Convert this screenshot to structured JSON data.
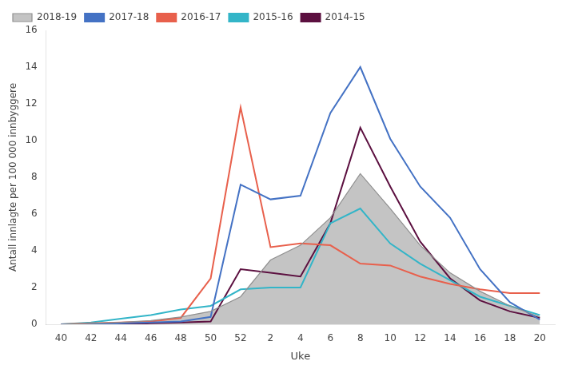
{
  "chart_data": {
    "type": "line",
    "xlabel": "Uke",
    "ylabel": "Antall innlagte per 100 000 innbyggere",
    "categories": [
      "40",
      "42",
      "44",
      "46",
      "48",
      "50",
      "52",
      "2",
      "4",
      "6",
      "8",
      "10",
      "12",
      "14",
      "16",
      "18",
      "20"
    ],
    "series": [
      {
        "name": "2018-19",
        "type": "area",
        "color": "#b0b0b0",
        "values": [
          0.0,
          0.05,
          0.1,
          0.2,
          0.4,
          0.7,
          1.5,
          3.5,
          4.3,
          5.8,
          8.2,
          6.3,
          4.3,
          2.8,
          1.8,
          1.0,
          0.4
        ]
      },
      {
        "name": "2017-18",
        "color": "#4472c4",
        "values": [
          0.0,
          0.0,
          0.05,
          0.1,
          0.15,
          0.4,
          7.6,
          6.8,
          7.0,
          11.5,
          14.0,
          10.1,
          7.5,
          5.8,
          3.0,
          1.2,
          0.25
        ]
      },
      {
        "name": "2016-17",
        "color": "#e8604c",
        "values": [
          0.0,
          0.05,
          0.1,
          0.15,
          0.35,
          2.5,
          11.8,
          4.2,
          4.4,
          4.3,
          3.3,
          3.2,
          2.6,
          2.2,
          1.9,
          1.7,
          1.7
        ]
      },
      {
        "name": "2015-16",
        "color": "#33b5c8",
        "values": [
          0.0,
          0.1,
          0.3,
          0.5,
          0.8,
          1.0,
          1.9,
          2.0,
          2.0,
          5.5,
          6.3,
          4.4,
          3.3,
          2.4,
          1.5,
          1.0,
          0.5
        ]
      },
      {
        "name": "2014-15",
        "color": "#5c1040",
        "values": [
          0.0,
          0.0,
          0.0,
          0.05,
          0.1,
          0.15,
          3.0,
          2.8,
          2.6,
          5.5,
          10.7,
          7.5,
          4.5,
          2.5,
          1.3,
          0.7,
          0.35
        ]
      }
    ],
    "ylim": [
      0,
      16
    ],
    "yticks": [
      0,
      2,
      4,
      6,
      8,
      10,
      12,
      14,
      16
    ],
    "grid": false,
    "legend": "upper left"
  }
}
